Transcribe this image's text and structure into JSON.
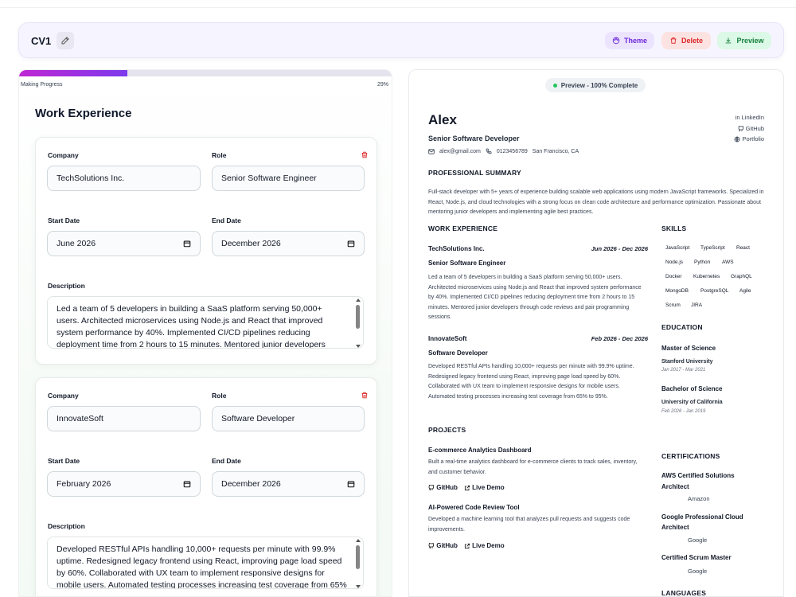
{
  "header": {
    "cv_name": "CV1",
    "theme_label": "Theme",
    "delete_label": "Delete",
    "preview_label": "Preview"
  },
  "progress": {
    "label": "Making Progress",
    "percent_text": "29%",
    "fraction": 0.29
  },
  "editor": {
    "section_title": "Work Experience",
    "labels": {
      "company": "Company",
      "role": "Role",
      "start_date": "Start Date",
      "end_date": "End Date",
      "description": "Description"
    },
    "experiences": [
      {
        "company": "TechSolutions Inc.",
        "role": "Senior Software Engineer",
        "start": "June 2026",
        "end": "December 2026",
        "description": "Led a team of 5 developers in building a SaaS platform serving 50,000+ users. Architected microservices using Node.js and React that improved system performance by 40%. Implemented CI/CD pipelines reducing deployment time from 2 hours to 15 minutes. Mentored junior developers through code reviews and pair programming sessions."
      },
      {
        "company": "InnovateSoft",
        "role": "Software Developer",
        "start": "February 2026",
        "end": "December 2026",
        "description": "Developed RESTful APIs handling 10,000+ requests per minute with 99.9% uptime. Redesigned legacy frontend using React, improving page load speed by 60%. Collaborated with UX team to implement responsive designs for mobile users. Automated testing processes increasing test coverage from 65% to 95%."
      }
    ]
  },
  "preview": {
    "badge": "Preview - 100% Complete",
    "name": "Alex",
    "title": "Senior Software Developer",
    "email": "alex@gmail.com",
    "phone": "0123456789",
    "location": "San Francisco, CA",
    "links": [
      "in LinkedIn",
      "GitHub",
      "Portfolio"
    ],
    "summary_heading": "PROFESSIONAL SUMMARY",
    "summary": "Full-stack developer with 5+ years of experience building scalable web applications using modern JavaScript frameworks. Specialized in React, Node.js, and cloud technologies with a strong focus on clean code architecture and performance optimization. Passionate about mentoring junior developers and implementing agile best practices.",
    "work_heading": "WORK EXPERIENCE",
    "work": [
      {
        "company": "TechSolutions Inc.",
        "dates": "Jun 2026 - Dec 2026",
        "role": "Senior Software Engineer",
        "description": "Led a team of 5 developers in building a SaaS platform serving 50,000+ users. Architected microservices using Node.js and React that improved system performance by 40%. Implemented CI/CD pipelines reducing deployment time from 2 hours to 15 minutes. Mentored junior developers through code reviews and pair programming sessions."
      },
      {
        "company": "InnovateSoft",
        "dates": "Feb 2026 - Dec 2026",
        "role": "Software Developer",
        "description": "Developed RESTful APIs handling 10,000+ requests per minute with 99.9% uptime. Redesigned legacy frontend using React, improving page load speed by 60%. Collaborated with UX team to implement responsive designs for mobile users. Automated testing processes increasing test coverage from 65% to 95%."
      }
    ],
    "projects_heading": "PROJECTS",
    "projects": [
      {
        "name": "E-commerce Analytics Dashboard",
        "description": "Built a real-time analytics dashboard for e-commerce clients to track sales, inventory, and customer behavior.",
        "github": "GitHub",
        "demo": "Live Demo"
      },
      {
        "name": "AI-Powered Code Review Tool",
        "description": "Developed a machine learning tool that analyzes pull requests and suggests code improvements.",
        "github": "GitHub",
        "demo": "Live Demo"
      }
    ],
    "skills_heading": "SKILLS",
    "skills": [
      "JavaScript",
      "TypeScript",
      "React",
      "Node.js",
      "Python",
      "AWS",
      "Docker",
      "Kubernetes",
      "GraphQL",
      "MongoDB",
      "PostgreSQL",
      "Agile",
      "Scrum",
      "JIRA"
    ],
    "education_heading": "EDUCATION",
    "education": [
      {
        "degree": "Master of Science",
        "school": "Stanford University",
        "dates": "Jan 2017 - Mar 2021"
      },
      {
        "degree": "Bachelor of Science",
        "school": "University of California",
        "dates": "Feb 2026 - Jan 2019"
      }
    ],
    "certs_heading": "CERTIFICATIONS",
    "certifications": [
      {
        "name_line1": "AWS Certified Solutions",
        "name_line2": "Architect",
        "issuer": "Amazon"
      },
      {
        "name_line1": "Google Professional Cloud",
        "name_line2": "Architect",
        "issuer": "Google"
      },
      {
        "name_line1": "Certified Scrum Master",
        "name_line2": "",
        "issuer": "Google"
      }
    ],
    "languages_heading": "LANGUAGES"
  },
  "colors": {
    "accent_purple": "#7c3aed",
    "danger": "#dc2626",
    "success": "#15803d",
    "status_dot": "#22c55e"
  }
}
